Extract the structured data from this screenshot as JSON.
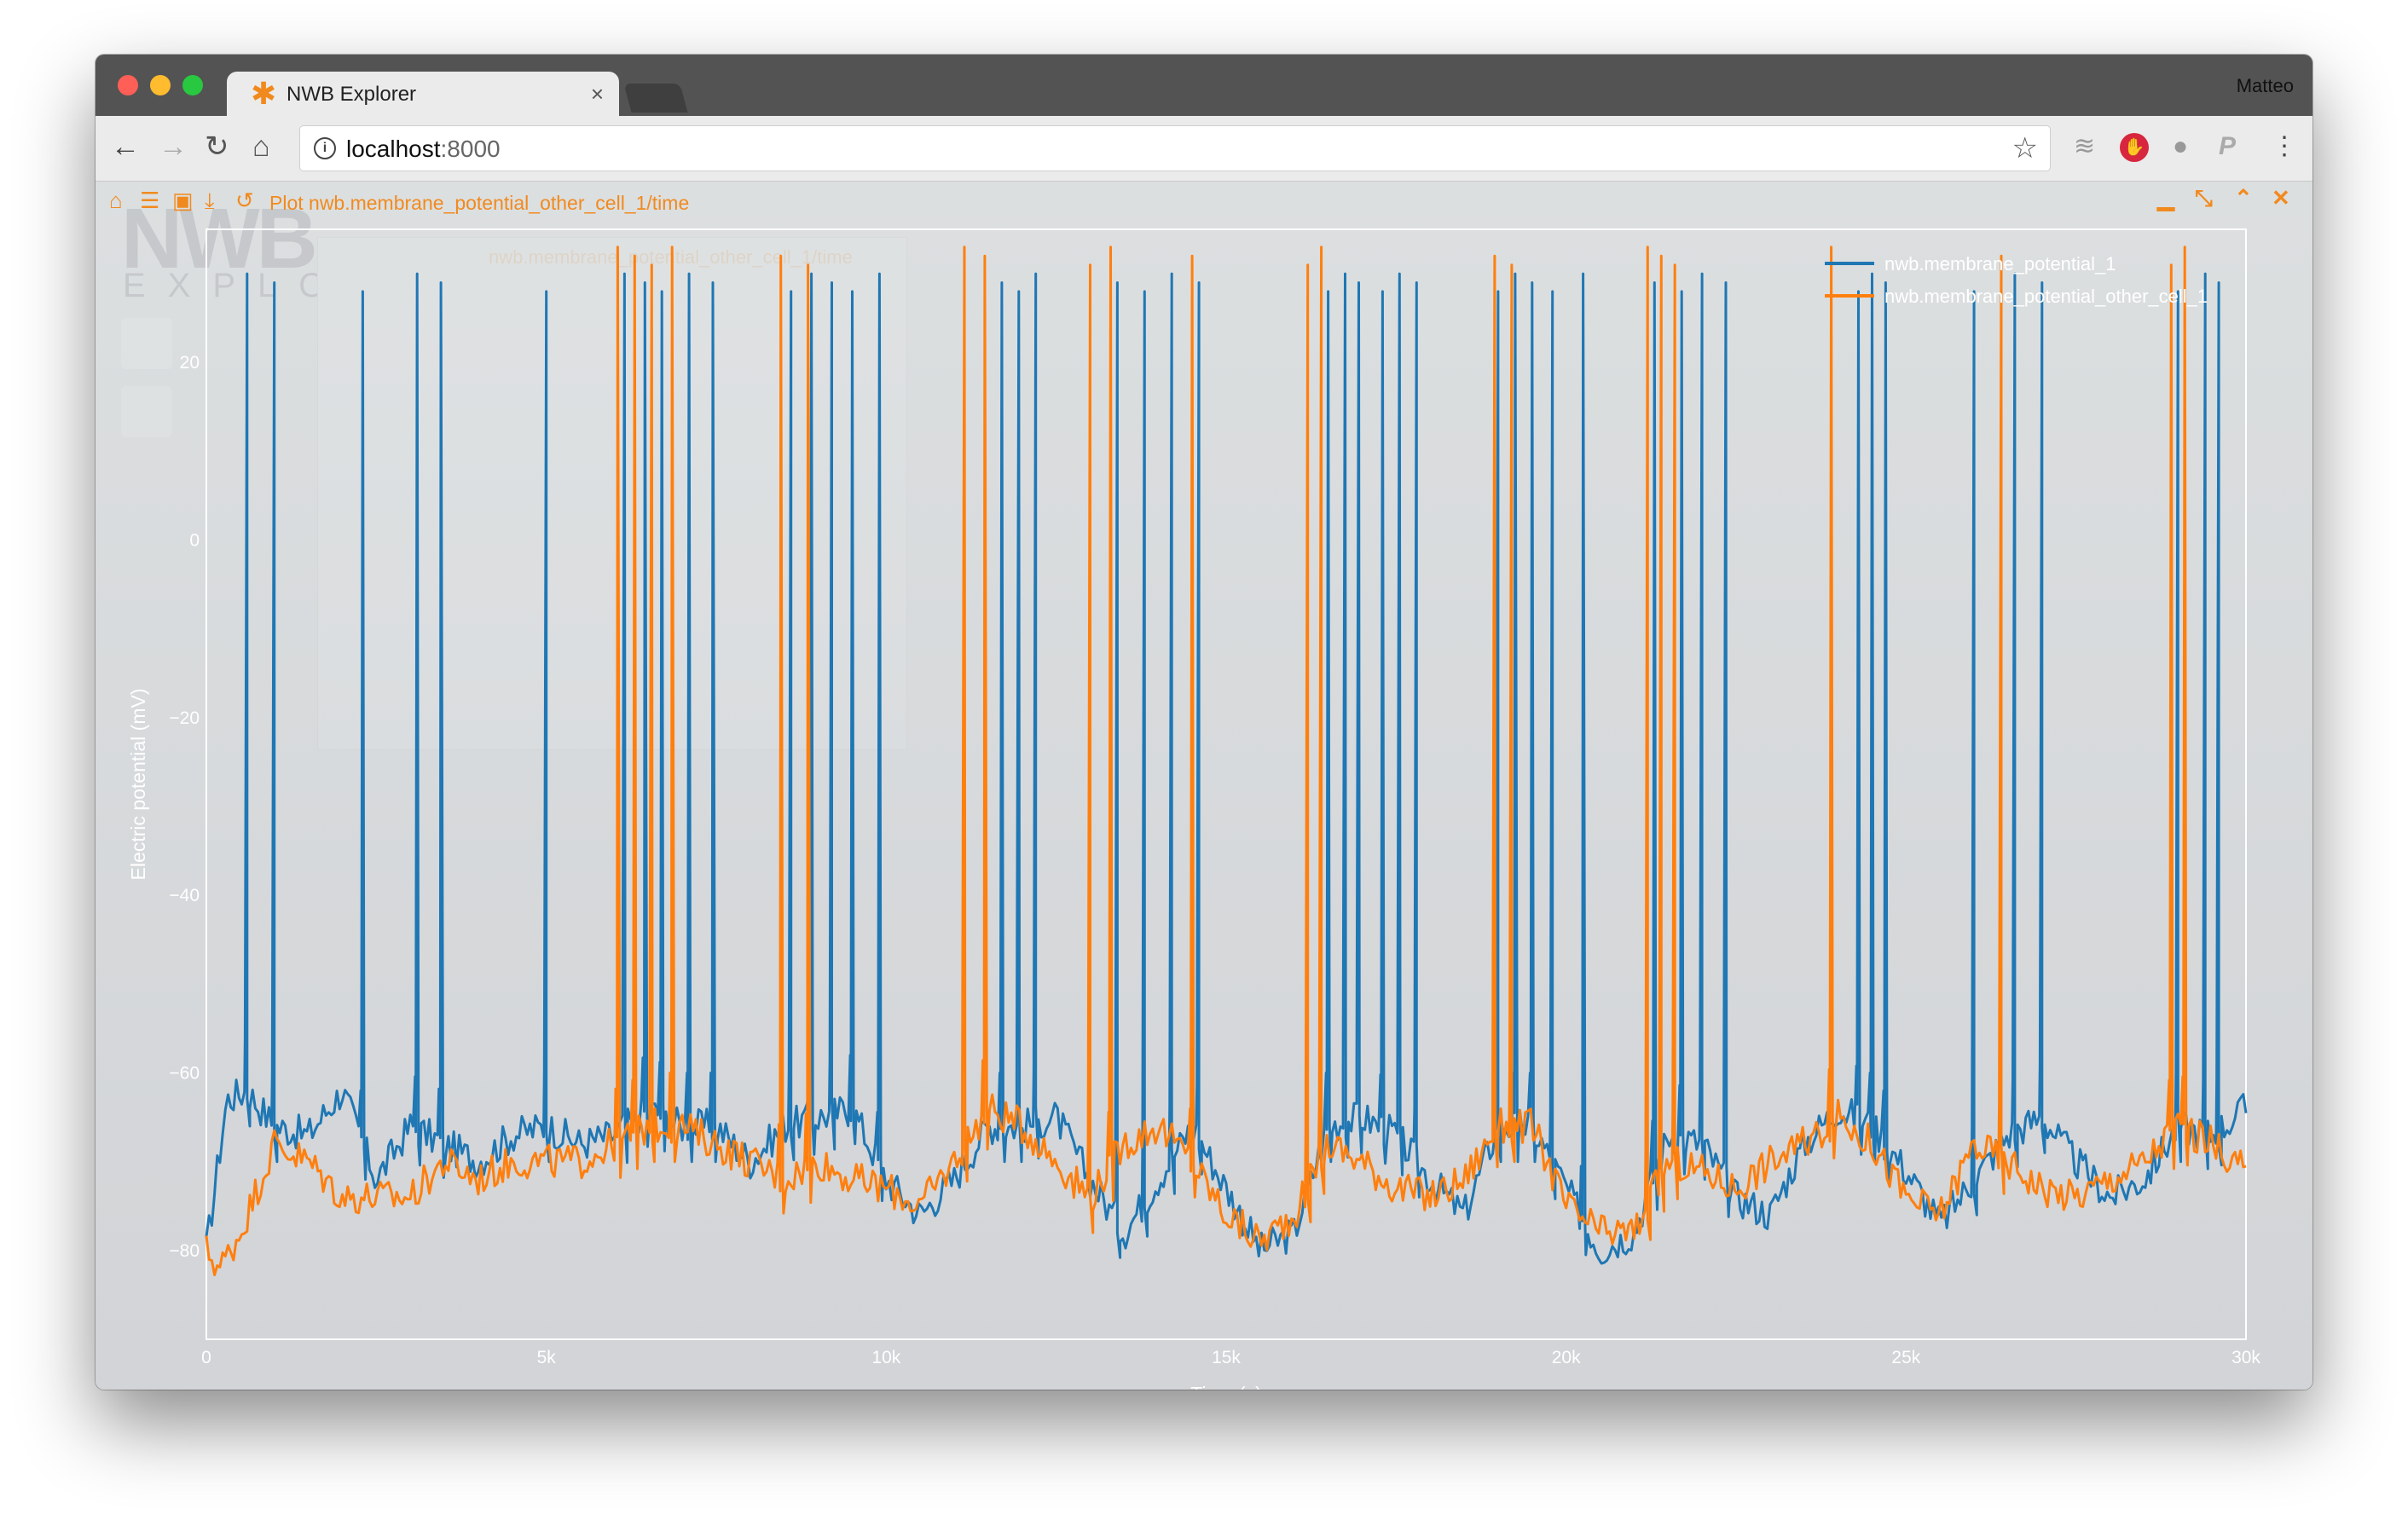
{
  "browser": {
    "tab_title": "NWB Explorer",
    "tab_icon": "asterisk-icon",
    "profile_name": "Matteo",
    "url_host": "localhost",
    "url_port": ":8000"
  },
  "app": {
    "logo_text": "NWB",
    "logo_sub": "EXPLORER",
    "ghost_plot_title": "nwb.membrane_potential_other_cell_1/time"
  },
  "plot_window": {
    "title": "Plot nwb.membrane_potential_other_cell_1/time",
    "toolbar_icons": [
      "home-icon",
      "list-icon",
      "image-icon",
      "download-icon",
      "history-icon"
    ],
    "controls": [
      "minimize-icon",
      "collapse-icon",
      "chevron-up-icon",
      "close-icon"
    ],
    "accent_color": "#f18a1e"
  },
  "chart_data": {
    "type": "line",
    "xlabel": "Time (s)",
    "ylabel": "Electric potential (mV)",
    "xlim": [
      0,
      30000
    ],
    "ylim": [
      -90,
      35
    ],
    "x_ticks": [
      0,
      5000,
      10000,
      15000,
      20000,
      25000,
      30000
    ],
    "x_tick_labels": [
      "0",
      "5k",
      "10k",
      "15k",
      "20k",
      "25k",
      "30k"
    ],
    "y_ticks": [
      -80,
      -60,
      -40,
      -20,
      0,
      20
    ],
    "y_tick_labels": [
      "−80",
      "−60",
      "−40",
      "−20",
      "0",
      "20"
    ],
    "grid": false,
    "legend_position": "top-right",
    "series": [
      {
        "name": "nwb.membrane_potential_1",
        "color": "#1f77b4",
        "baseline": [
          [
            0,
            -80
          ],
          [
            300,
            -63
          ],
          [
            600,
            -62
          ],
          [
            1000,
            -66
          ],
          [
            1500,
            -67
          ],
          [
            2000,
            -62
          ],
          [
            2500,
            -72
          ],
          [
            3000,
            -66
          ],
          [
            3500,
            -68
          ],
          [
            4000,
            -70
          ],
          [
            4500,
            -67
          ],
          [
            5000,
            -66
          ],
          [
            5500,
            -68
          ],
          [
            6000,
            -67
          ],
          [
            6500,
            -64
          ],
          [
            7000,
            -66
          ],
          [
            7500,
            -66
          ],
          [
            8000,
            -70
          ],
          [
            8500,
            -66
          ],
          [
            9000,
            -65
          ],
          [
            9500,
            -64
          ],
          [
            10000,
            -72
          ],
          [
            10500,
            -76
          ],
          [
            11000,
            -72
          ],
          [
            11500,
            -66
          ],
          [
            12000,
            -66
          ],
          [
            12500,
            -65
          ],
          [
            13000,
            -72
          ],
          [
            13500,
            -78
          ],
          [
            14000,
            -72
          ],
          [
            14500,
            -66
          ],
          [
            15000,
            -73
          ],
          [
            15500,
            -80
          ],
          [
            16000,
            -78
          ],
          [
            16500,
            -66
          ],
          [
            17000,
            -65
          ],
          [
            17500,
            -67
          ],
          [
            18000,
            -72
          ],
          [
            18500,
            -76
          ],
          [
            19000,
            -66
          ],
          [
            19500,
            -66
          ],
          [
            20000,
            -73
          ],
          [
            20500,
            -80
          ],
          [
            21000,
            -78
          ],
          [
            21500,
            -67
          ],
          [
            22000,
            -68
          ],
          [
            22500,
            -74
          ],
          [
            23000,
            -76
          ],
          [
            23500,
            -68
          ],
          [
            24000,
            -64
          ],
          [
            24500,
            -66
          ],
          [
            25000,
            -71
          ],
          [
            25500,
            -77
          ],
          [
            26000,
            -72
          ],
          [
            26500,
            -67
          ],
          [
            27000,
            -65
          ],
          [
            27500,
            -70
          ],
          [
            28000,
            -74
          ],
          [
            28500,
            -72
          ],
          [
            29000,
            -66
          ],
          [
            29500,
            -67
          ],
          [
            30000,
            -64
          ]
        ],
        "spikes": [
          600,
          1000,
          2300,
          3100,
          3450,
          5000,
          6150,
          6450,
          6700,
          7100,
          7450,
          8600,
          8900,
          9200,
          9500,
          9900,
          11700,
          11950,
          12200,
          13400,
          13800,
          14200,
          14600,
          16500,
          16750,
          16950,
          17300,
          17550,
          17800,
          19000,
          19250,
          19500,
          19800,
          20250,
          21300,
          21700,
          22000,
          22350,
          24300,
          24500,
          24700,
          26000,
          26600,
          27000,
          29000,
          29400,
          29600
        ],
        "spike_peak": 30
      },
      {
        "name": "nwb.membrane_potential_other_cell_1",
        "color": "#ff7f0e",
        "baseline": [
          [
            0,
            -80
          ],
          [
            200,
            -82
          ],
          [
            500,
            -78
          ],
          [
            1000,
            -68
          ],
          [
            1500,
            -70
          ],
          [
            2000,
            -74
          ],
          [
            2500,
            -74
          ],
          [
            3000,
            -74
          ],
          [
            3500,
            -70
          ],
          [
            4000,
            -72
          ],
          [
            4500,
            -70
          ],
          [
            5000,
            -70
          ],
          [
            5500,
            -70
          ],
          [
            6000,
            -68
          ],
          [
            6500,
            -66
          ],
          [
            7000,
            -66
          ],
          [
            7500,
            -68
          ],
          [
            8000,
            -70
          ],
          [
            8500,
            -72
          ],
          [
            9000,
            -70
          ],
          [
            9500,
            -72
          ],
          [
            10000,
            -73
          ],
          [
            10500,
            -75
          ],
          [
            11000,
            -70
          ],
          [
            11500,
            -64
          ],
          [
            12000,
            -66
          ],
          [
            12500,
            -70
          ],
          [
            13000,
            -74
          ],
          [
            13500,
            -68
          ],
          [
            14000,
            -66
          ],
          [
            14500,
            -70
          ],
          [
            15000,
            -76
          ],
          [
            15500,
            -79
          ],
          [
            16000,
            -76
          ],
          [
            16500,
            -68
          ],
          [
            17000,
            -70
          ],
          [
            17500,
            -73
          ],
          [
            18000,
            -74
          ],
          [
            18500,
            -72
          ],
          [
            19000,
            -66
          ],
          [
            19500,
            -66
          ],
          [
            20000,
            -75
          ],
          [
            20500,
            -78
          ],
          [
            21000,
            -78
          ],
          [
            21500,
            -70
          ],
          [
            22000,
            -71
          ],
          [
            22500,
            -73
          ],
          [
            23000,
            -70
          ],
          [
            23500,
            -68
          ],
          [
            24000,
            -65
          ],
          [
            24500,
            -68
          ],
          [
            25000,
            -74
          ],
          [
            25500,
            -76
          ],
          [
            26000,
            -68
          ],
          [
            26500,
            -70
          ],
          [
            27000,
            -73
          ],
          [
            27500,
            -74
          ],
          [
            28000,
            -72
          ],
          [
            28500,
            -70
          ],
          [
            29000,
            -66
          ],
          [
            29500,
            -68
          ],
          [
            30000,
            -71
          ]
        ],
        "spikes": [
          6050,
          6300,
          6550,
          6850,
          8450,
          8850,
          11150,
          11450,
          13000,
          13300,
          14500,
          16200,
          16400,
          18950,
          19200,
          21200,
          21400,
          21600,
          23900,
          26400,
          28900,
          29100
        ],
        "spike_peak": 33
      }
    ]
  }
}
